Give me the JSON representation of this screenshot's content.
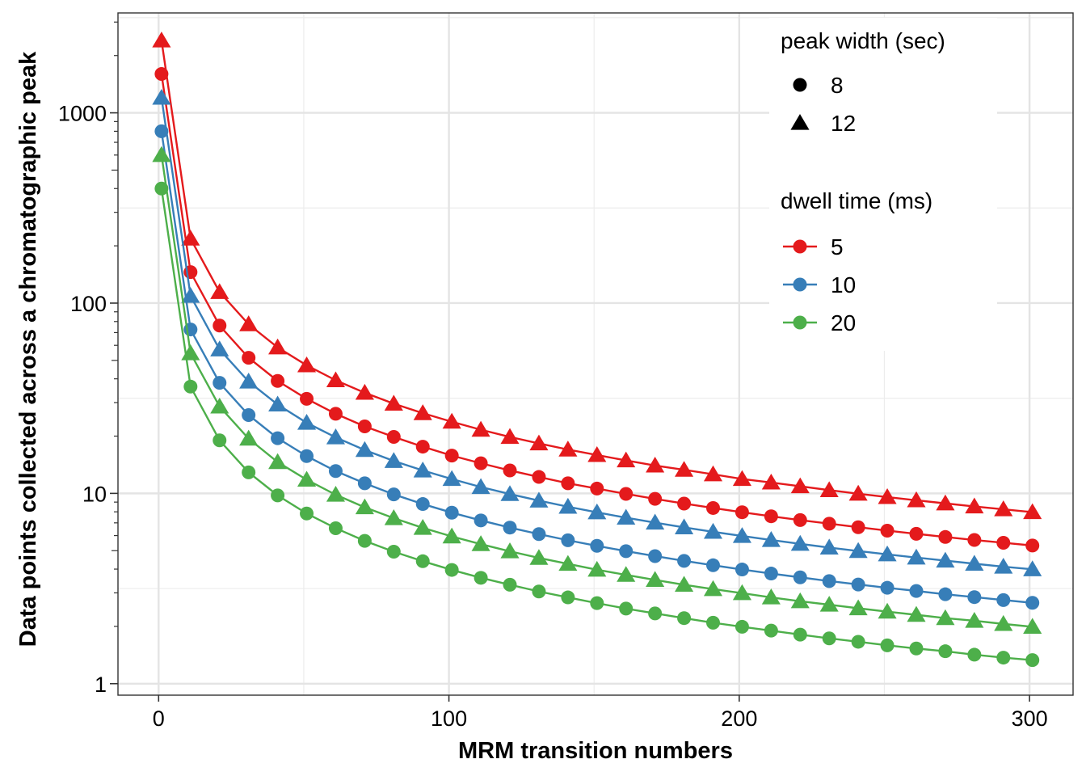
{
  "chart_data": {
    "type": "line",
    "xlabel": "MRM transition numbers",
    "ylabel": "Data points collected across a chromatographic peak",
    "xlim": [
      -14,
      315
    ],
    "ylim": [
      0.87,
      3350
    ],
    "yscale": "log",
    "x_ticks": [
      0,
      100,
      200,
      300
    ],
    "y_ticks": [
      1,
      10,
      100,
      1000
    ],
    "grid": true,
    "legend_position": "top-right",
    "x": [
      1,
      11,
      21,
      31,
      41,
      51,
      61,
      71,
      81,
      91,
      101,
      111,
      121,
      131,
      141,
      151,
      161,
      171,
      181,
      191,
      201,
      211,
      221,
      231,
      241,
      251,
      261,
      271,
      281,
      291,
      301
    ],
    "legends": {
      "shape": {
        "title": "peak width (sec)",
        "entries": [
          {
            "label": "8",
            "shape": "circle"
          },
          {
            "label": "12",
            "shape": "triangle"
          }
        ]
      },
      "color": {
        "title": "dwell time (ms)",
        "entries": [
          {
            "label": "5",
            "color": "#E41A1C"
          },
          {
            "label": "10",
            "color": "#377EB8"
          },
          {
            "label": "20",
            "color": "#4DAF4A"
          }
        ]
      }
    },
    "series": [
      {
        "peak_width": "8",
        "dwell_time": "5",
        "shape": "circle",
        "color": "#E41A1C",
        "values": [
          1600,
          145.5,
          76.2,
          51.6,
          39.0,
          31.4,
          26.2,
          22.5,
          19.8,
          17.6,
          15.8,
          14.4,
          13.2,
          12.2,
          11.3,
          10.6,
          9.94,
          9.36,
          8.84,
          8.38,
          7.96,
          7.58,
          7.24,
          6.93,
          6.64,
          6.37,
          6.13,
          5.9,
          5.69,
          5.5,
          5.32
        ]
      },
      {
        "peak_width": "12",
        "dwell_time": "5",
        "shape": "triangle",
        "color": "#E41A1C",
        "values": [
          2400,
          218.2,
          114.3,
          77.4,
          58.5,
          47.1,
          39.3,
          33.8,
          29.6,
          26.4,
          23.8,
          21.6,
          19.8,
          18.3,
          17.0,
          15.9,
          14.9,
          14.0,
          13.3,
          12.6,
          11.9,
          11.4,
          10.9,
          10.4,
          9.96,
          9.56,
          9.2,
          8.86,
          8.54,
          8.25,
          7.97
        ]
      },
      {
        "peak_width": "8",
        "dwell_time": "10",
        "shape": "circle",
        "color": "#377EB8",
        "values": [
          800,
          72.7,
          38.1,
          25.8,
          19.5,
          15.7,
          13.1,
          11.3,
          9.88,
          8.79,
          7.92,
          7.21,
          6.61,
          6.11,
          5.67,
          5.3,
          4.97,
          4.68,
          4.42,
          4.19,
          3.98,
          3.79,
          3.62,
          3.46,
          3.32,
          3.19,
          3.07,
          2.95,
          2.85,
          2.75,
          2.66
        ]
      },
      {
        "peak_width": "12",
        "dwell_time": "10",
        "shape": "triangle",
        "color": "#377EB8",
        "values": [
          1200,
          109.1,
          57.1,
          38.7,
          29.3,
          23.5,
          19.7,
          16.9,
          14.8,
          13.2,
          11.9,
          10.8,
          9.92,
          9.16,
          8.51,
          7.95,
          7.45,
          7.02,
          6.63,
          6.28,
          5.97,
          5.69,
          5.43,
          5.19,
          4.98,
          4.78,
          4.6,
          4.43,
          4.27,
          4.12,
          3.99
        ]
      },
      {
        "peak_width": "8",
        "dwell_time": "20",
        "shape": "circle",
        "color": "#4DAF4A",
        "values": [
          400,
          36.4,
          19.0,
          12.9,
          9.76,
          7.84,
          6.56,
          5.63,
          4.94,
          4.4,
          3.96,
          3.6,
          3.31,
          3.05,
          2.84,
          2.65,
          2.48,
          2.34,
          2.21,
          2.09,
          1.99,
          1.9,
          1.81,
          1.73,
          1.66,
          1.59,
          1.53,
          1.48,
          1.42,
          1.37,
          1.33
        ]
      },
      {
        "peak_width": "12",
        "dwell_time": "20",
        "shape": "triangle",
        "color": "#4DAF4A",
        "values": [
          600,
          54.5,
          28.6,
          19.4,
          14.6,
          11.8,
          9.84,
          8.45,
          7.41,
          6.59,
          5.94,
          5.41,
          4.96,
          4.58,
          4.26,
          3.97,
          3.73,
          3.51,
          3.31,
          3.14,
          2.99,
          2.84,
          2.71,
          2.6,
          2.49,
          2.39,
          2.3,
          2.21,
          2.14,
          2.06,
          1.99
        ]
      }
    ]
  }
}
